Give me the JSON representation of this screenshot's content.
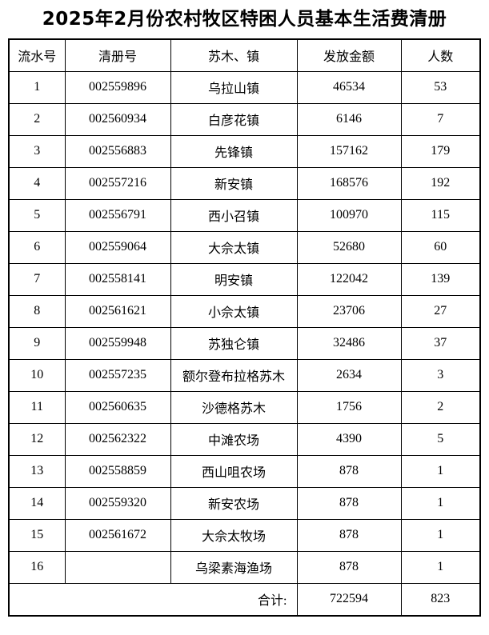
{
  "page": {
    "title": "2025年2月份农村牧区特困人员基本生活费清册"
  },
  "table": {
    "headers": [
      "流水号",
      "清册号",
      "苏木、镇",
      "发放金额",
      "人数"
    ],
    "rows": [
      {
        "serial": "1",
        "register_no": "002559896",
        "town": "乌拉山镇",
        "amount": "46534",
        "count": "53"
      },
      {
        "serial": "2",
        "register_no": "002560934",
        "town": "白彦花镇",
        "amount": "6146",
        "count": "7"
      },
      {
        "serial": "3",
        "register_no": "002556883",
        "town": "先锋镇",
        "amount": "157162",
        "count": "179"
      },
      {
        "serial": "4",
        "register_no": "002557216",
        "town": "新安镇",
        "amount": "168576",
        "count": "192"
      },
      {
        "serial": "5",
        "register_no": "002556791",
        "town": "西小召镇",
        "amount": "100970",
        "count": "115"
      },
      {
        "serial": "6",
        "register_no": "002559064",
        "town": "大佘太镇",
        "amount": "52680",
        "count": "60"
      },
      {
        "serial": "7",
        "register_no": "002558141",
        "town": "明安镇",
        "amount": "122042",
        "count": "139"
      },
      {
        "serial": "8",
        "register_no": "002561621",
        "town": "小佘太镇",
        "amount": "23706",
        "count": "27"
      },
      {
        "serial": "9",
        "register_no": "002559948",
        "town": "苏独仑镇",
        "amount": "32486",
        "count": "37"
      },
      {
        "serial": "10",
        "register_no": "002557235",
        "town": "额尔登布拉格苏木",
        "amount": "2634",
        "count": "3"
      },
      {
        "serial": "11",
        "register_no": "002560635",
        "town": "沙德格苏木",
        "amount": "1756",
        "count": "2"
      },
      {
        "serial": "12",
        "register_no": "002562322",
        "town": "中滩农场",
        "amount": "4390",
        "count": "5"
      },
      {
        "serial": "13",
        "register_no": "002558859",
        "town": "西山咀农场",
        "amount": "878",
        "count": "1"
      },
      {
        "serial": "14",
        "register_no": "002559320",
        "town": "新安农场",
        "amount": "878",
        "count": "1"
      },
      {
        "serial": "15",
        "register_no": "002561672",
        "town": "大佘太牧场",
        "amount": "878",
        "count": "1"
      },
      {
        "serial": "16",
        "register_no": "",
        "town": "乌梁素海渔场",
        "amount": "878",
        "count": "1"
      }
    ],
    "total": {
      "label": "合计:",
      "amount": "722594",
      "count": "823"
    }
  }
}
